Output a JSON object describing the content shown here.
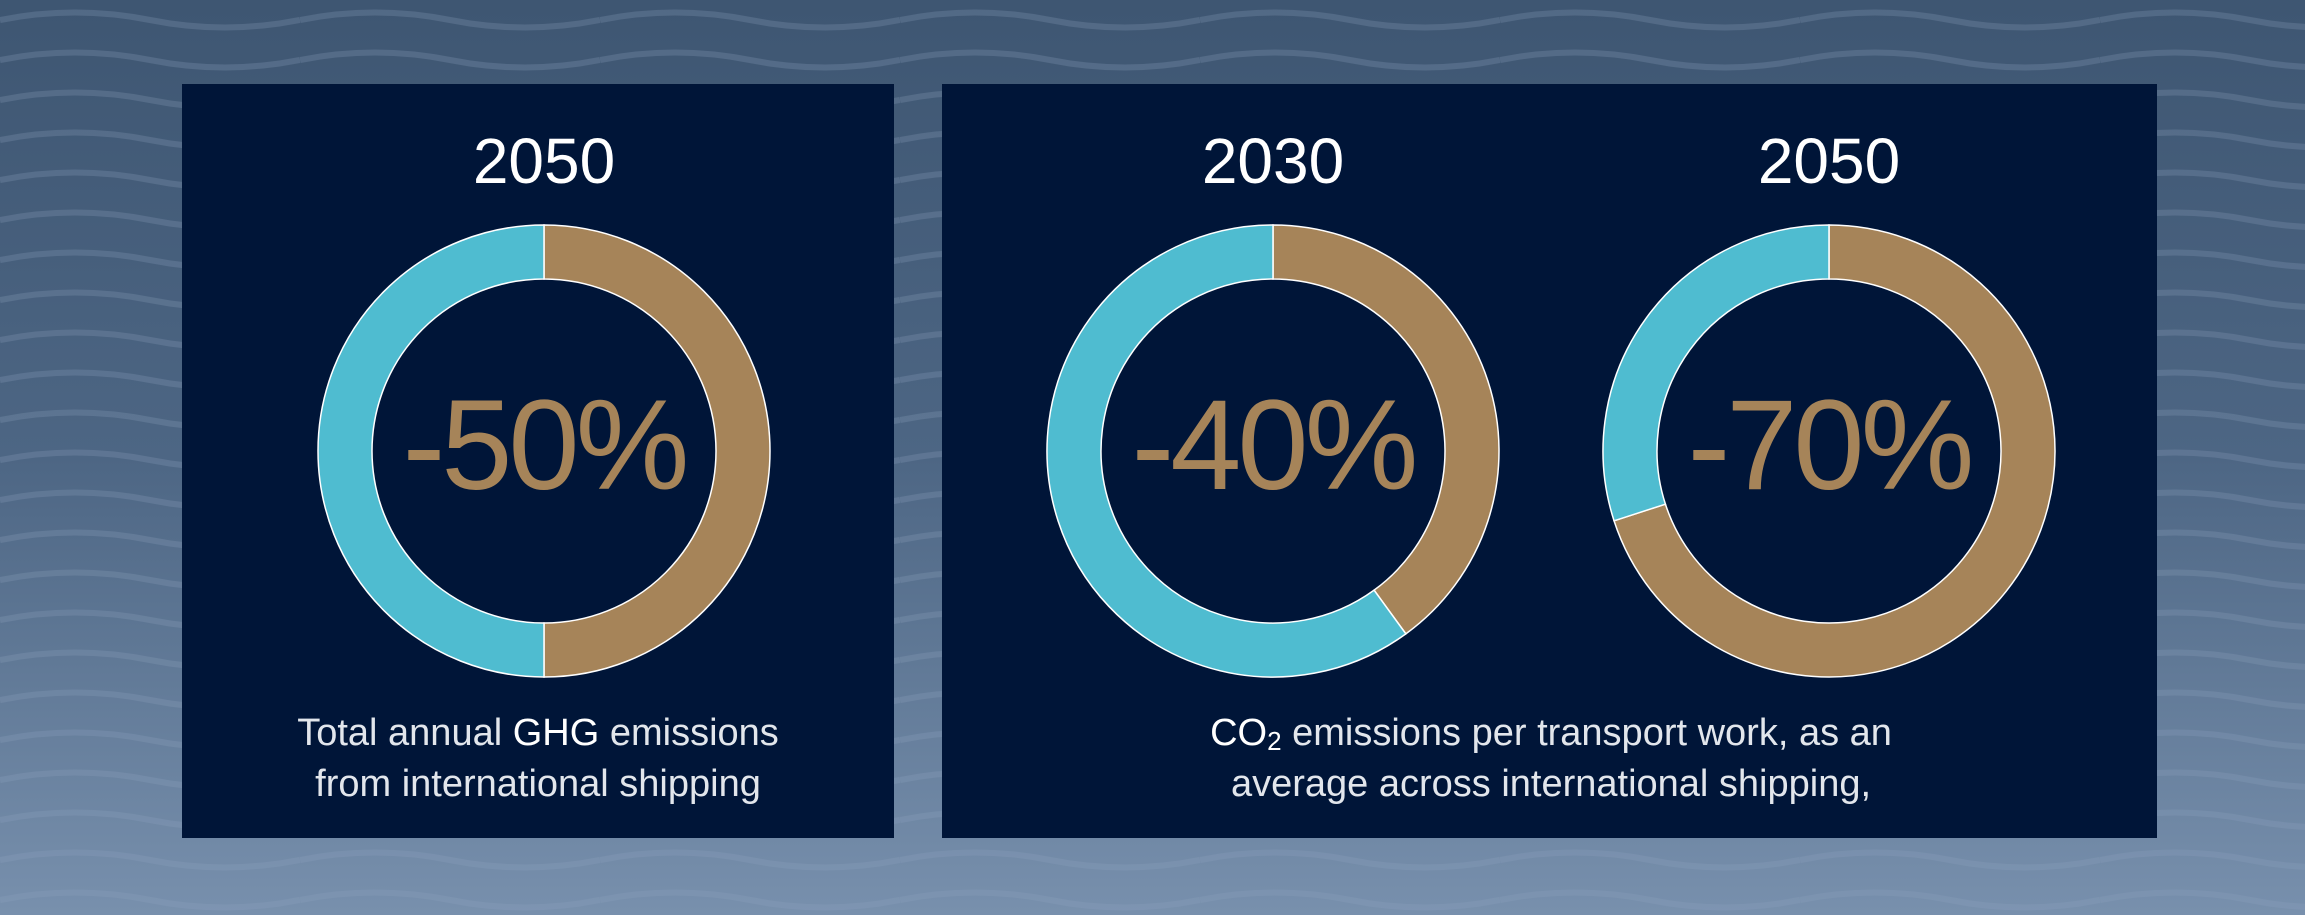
{
  "chart_data": [
    {
      "type": "donut",
      "title": "2050",
      "values": [
        50,
        50
      ],
      "colors": [
        "#a68459",
        "#4fbcd0"
      ],
      "center_label": "-50%"
    },
    {
      "type": "donut",
      "title": "2030",
      "values": [
        40,
        60
      ],
      "colors": [
        "#a68459",
        "#4fbcd0"
      ],
      "center_label": "-40%"
    },
    {
      "type": "donut",
      "title": "2050",
      "values": [
        70,
        30
      ],
      "colors": [
        "#a68459",
        "#4fbcd0"
      ],
      "center_label": "-70%"
    }
  ],
  "captions": [
    {
      "lines": [
        [
          "Total annual ",
          "GHG",
          " emissions"
        ],
        [
          "from international shipping"
        ]
      ]
    },
    {
      "lines": [
        [
          "CO",
          "2",
          " emissions per transport work, as an"
        ],
        [
          "average across international shipping,"
        ]
      ]
    }
  ]
}
